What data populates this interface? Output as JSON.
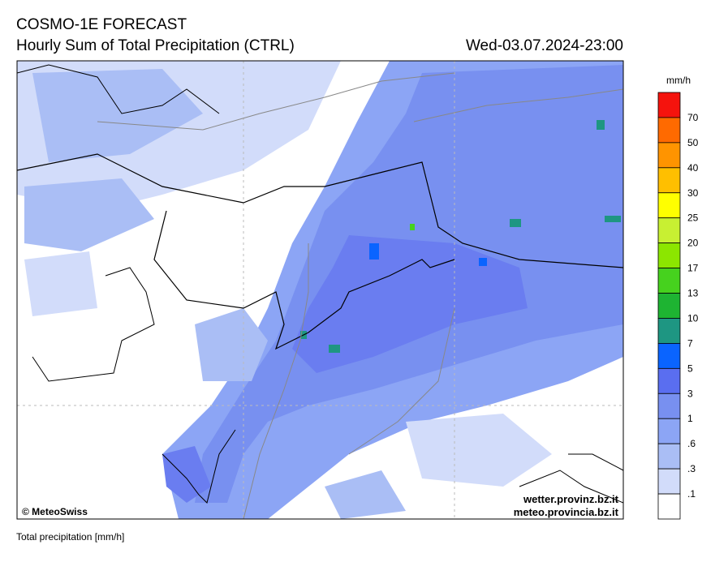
{
  "header": {
    "title": "COSMO-1E FORECAST",
    "subtitle": "Hourly Sum of Total Precipitation (CTRL)",
    "datetime": "Wed-03.07.2024-23:00"
  },
  "map": {
    "credit": "© MeteoSwiss",
    "urls": [
      "wetter.provinz.bz.it",
      "meteo.provincia.bz.it"
    ]
  },
  "legend": {
    "unit": "mm/h",
    "labels": [
      "70",
      "50",
      "40",
      "30",
      "25",
      "20",
      "17",
      "13",
      "10",
      "7",
      "5",
      "3",
      "1",
      ".6",
      ".3",
      ".1"
    ],
    "colors": [
      "#f5130d",
      "#ff6a00",
      "#ff9400",
      "#ffbf00",
      "#ffff00",
      "#c8f032",
      "#8ce600",
      "#46d21e",
      "#1eb432",
      "#1e9682",
      "#0a64ff",
      "#5a6ef0",
      "#7890f0",
      "#8ca5f5",
      "#aabef5",
      "#d2dcfa",
      "#ffffff"
    ]
  },
  "footer": {
    "caption": "Total precipitation [mm/h]"
  }
}
